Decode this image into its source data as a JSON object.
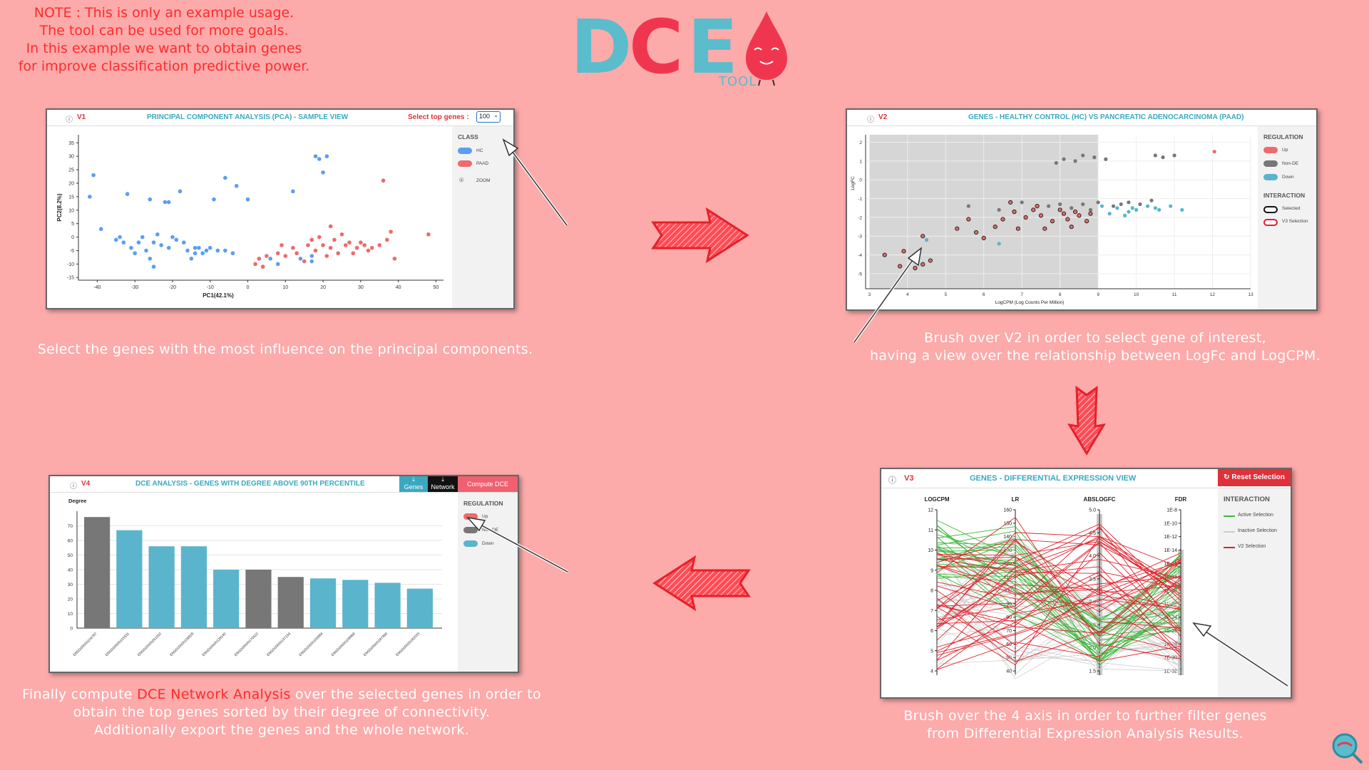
{
  "note": [
    "NOTE : This is only an example usage.",
    "The tool can be used for more goals.",
    "In this example we want to obtain genes",
    "for improve classification predictive power."
  ],
  "logo": {
    "text": "DCE",
    "sub": "TOOL",
    "colors": {
      "d": "#5bbccc",
      "c": "#f0364f",
      "e": "#5bbccc",
      "drop": "#f0364f"
    }
  },
  "colors": {
    "hc": "#5b9ef0",
    "paad": "#ef6a6a",
    "up": "#ef6a6a",
    "nonde": "#777777",
    "down": "#5ab4cc",
    "accent": "#ff2b2b",
    "teal": "#3aa8c0"
  },
  "v1": {
    "id": "V1",
    "title": "PRINCIPAL COMPONENT ANALYSIS (PCA) - SAMPLE VIEW",
    "select_label": "Select top genes :",
    "select_value": "100",
    "class_header": "CLASS",
    "legend": [
      "HC",
      "PAAD"
    ],
    "zoom": "ZOOM",
    "caption": "Select the genes with the most influence on the principal components.",
    "chart_data": {
      "type": "scatter",
      "xlabel": "PC1(42.1%)",
      "ylabel": "PC2(8.2%)",
      "xlim": [
        -45,
        52
      ],
      "ylim": [
        -16,
        38
      ],
      "xticks": [
        -40,
        -30,
        -20,
        -10,
        0,
        10,
        20,
        30,
        40,
        50
      ],
      "yticks": [
        -15,
        -10,
        -5,
        0,
        5,
        10,
        15,
        20,
        25,
        30,
        35
      ],
      "series": [
        {
          "name": "HC",
          "color": "#5b9ef0",
          "points": [
            [
              -42,
              15
            ],
            [
              -41,
              23
            ],
            [
              -39,
              3
            ],
            [
              -35,
              -1
            ],
            [
              -34,
              0
            ],
            [
              -33,
              -2
            ],
            [
              -32,
              16
            ],
            [
              -31,
              -4
            ],
            [
              -30,
              -6
            ],
            [
              -29,
              -2
            ],
            [
              -28,
              0
            ],
            [
              -27,
              -5
            ],
            [
              -26,
              14
            ],
            [
              -26,
              -8
            ],
            [
              -25,
              -11
            ],
            [
              -25,
              -2
            ],
            [
              -24,
              1
            ],
            [
              -23,
              -3
            ],
            [
              -22,
              13
            ],
            [
              -21,
              13
            ],
            [
              -21,
              -4
            ],
            [
              -20,
              0
            ],
            [
              -19,
              -1
            ],
            [
              -18,
              17
            ],
            [
              -17,
              -2
            ],
            [
              -16,
              -5
            ],
            [
              -15,
              -8
            ],
            [
              -14,
              -4
            ],
            [
              -14,
              -6
            ],
            [
              -13,
              -4
            ],
            [
              -12,
              -6
            ],
            [
              -11,
              -5
            ],
            [
              -10,
              -4
            ],
            [
              -9,
              14
            ],
            [
              -8,
              -5
            ],
            [
              -6,
              22
            ],
            [
              -6,
              -5
            ],
            [
              -4,
              -6
            ],
            [
              -3,
              19
            ],
            [
              0,
              14
            ],
            [
              6,
              -8
            ],
            [
              8,
              -10
            ],
            [
              12,
              17
            ],
            [
              14,
              -8
            ],
            [
              17,
              -7
            ],
            [
              17,
              -9
            ],
            [
              18,
              30
            ],
            [
              19,
              29
            ],
            [
              20,
              24
            ],
            [
              21,
              30
            ]
          ]
        },
        {
          "name": "PAAD",
          "color": "#ef6a6a",
          "points": [
            [
              2,
              -10
            ],
            [
              3,
              -8
            ],
            [
              4,
              -11
            ],
            [
              5,
              -7
            ],
            [
              8,
              -6
            ],
            [
              9,
              -3
            ],
            [
              10,
              -7
            ],
            [
              12,
              -4
            ],
            [
              13,
              -6
            ],
            [
              15,
              -9
            ],
            [
              16,
              -3
            ],
            [
              17,
              -1
            ],
            [
              18,
              -5
            ],
            [
              19,
              0
            ],
            [
              20,
              -3
            ],
            [
              21,
              -7
            ],
            [
              22,
              4
            ],
            [
              22,
              -4
            ],
            [
              23,
              -1
            ],
            [
              24,
              -6
            ],
            [
              25,
              1
            ],
            [
              26,
              -3
            ],
            [
              27,
              -2
            ],
            [
              28,
              -6
            ],
            [
              29,
              -4
            ],
            [
              30,
              -2
            ],
            [
              31,
              -3
            ],
            [
              32,
              -5
            ],
            [
              33,
              -4
            ],
            [
              35,
              -3
            ],
            [
              36,
              21
            ],
            [
              37,
              -1
            ],
            [
              38,
              2
            ],
            [
              39,
              -8
            ],
            [
              48,
              1
            ]
          ]
        }
      ]
    }
  },
  "v2": {
    "id": "V2",
    "title": "GENES - HEALTHY CONTROL (HC) VS PANCREATIC ADENOCARCINOMA (PAAD)",
    "regulation_header": "REGULATION",
    "legend": [
      "Up",
      "Non-DE",
      "Down"
    ],
    "interaction_header": "INTERACTION",
    "interaction": [
      "Selected",
      "V3 Selection"
    ],
    "caption": [
      "Brush over V2 in order to select gene of interest,",
      "having a view over the relationship between LogFc and LogCPM."
    ],
    "chart_data": {
      "type": "scatter",
      "xlabel": "LogCPM (Log Counts Per Million)",
      "ylabel": "LogFC",
      "xlim": [
        2.9,
        13
      ],
      "ylim": [
        -5.8,
        2.4
      ],
      "xticks": [
        3,
        4,
        5,
        6,
        7,
        8,
        9,
        10,
        11,
        12,
        13
      ],
      "yticks": [
        2,
        1,
        0,
        -1,
        -2,
        -3,
        -4,
        -5
      ],
      "brush": [
        3,
        9
      ],
      "series": [
        {
          "name": "Up",
          "color": "#ef6a6a",
          "points": [
            [
              12.05,
              1.5
            ]
          ]
        },
        {
          "name": "Non-DE",
          "color": "#777777",
          "points": [
            [
              7.9,
              0.9
            ],
            [
              8.1,
              1.1
            ],
            [
              8.4,
              1.0
            ],
            [
              8.6,
              1.3
            ],
            [
              8.9,
              1.2
            ],
            [
              9.2,
              1.1
            ],
            [
              10.5,
              1.3
            ],
            [
              10.7,
              1.2
            ],
            [
              11.0,
              1.3
            ],
            [
              5.6,
              -1.4
            ],
            [
              6.4,
              -1.6
            ],
            [
              7.0,
              -1.2
            ],
            [
              7.7,
              -1.4
            ],
            [
              8.0,
              -1.3
            ],
            [
              8.3,
              -1.5
            ],
            [
              8.6,
              -1.3
            ],
            [
              8.8,
              -1.6
            ],
            [
              9.0,
              -1.2
            ],
            [
              9.4,
              -1.4
            ],
            [
              9.6,
              -1.3
            ],
            [
              9.8,
              -1.2
            ],
            [
              10.1,
              -1.3
            ],
            [
              10.4,
              -1.1
            ]
          ]
        },
        {
          "name": "Down",
          "color": "#5ab4cc",
          "points": [
            [
              9.1,
              -1.4
            ],
            [
              9.3,
              -1.8
            ],
            [
              9.5,
              -1.5
            ],
            [
              9.7,
              -1.9
            ],
            [
              9.9,
              -1.5
            ],
            [
              10.0,
              -1.6
            ],
            [
              10.3,
              -1.4
            ],
            [
              10.6,
              -1.6
            ],
            [
              10.9,
              -1.4
            ],
            [
              11.2,
              -1.6
            ],
            [
              10.5,
              -1.5
            ],
            [
              9.8,
              -1.7
            ],
            [
              4.5,
              -3.2
            ],
            [
              6.4,
              -3.4
            ]
          ]
        },
        {
          "name": "Selected",
          "color": "#ef6a6a",
          "points": [
            [
              3.4,
              -4.0
            ],
            [
              3.9,
              -3.8
            ],
            [
              3.8,
              -4.6
            ],
            [
              4.2,
              -4.7
            ],
            [
              4.4,
              -4.5
            ],
            [
              4.6,
              -4.3
            ],
            [
              4.4,
              -3.0
            ],
            [
              5.3,
              -2.6
            ],
            [
              5.6,
              -2.1
            ],
            [
              5.8,
              -2.8
            ],
            [
              6.0,
              -3.1
            ],
            [
              6.3,
              -2.5
            ],
            [
              6.5,
              -2.1
            ],
            [
              6.8,
              -1.7
            ],
            [
              6.9,
              -2.6
            ],
            [
              7.1,
              -2.0
            ],
            [
              7.3,
              -1.6
            ],
            [
              7.5,
              -1.9
            ],
            [
              7.6,
              -2.6
            ],
            [
              7.8,
              -2.2
            ],
            [
              8.0,
              -1.6
            ],
            [
              8.1,
              -1.8
            ],
            [
              8.2,
              -2.1
            ],
            [
              8.3,
              -2.5
            ],
            [
              8.4,
              -1.7
            ],
            [
              8.5,
              -1.9
            ],
            [
              8.7,
              -2.2
            ],
            [
              8.8,
              -1.8
            ],
            [
              7.4,
              -1.4
            ],
            [
              6.7,
              -1.2
            ]
          ]
        }
      ]
    }
  },
  "v3": {
    "id": "V3",
    "title": "GENES - DIFFERENTIAL EXPRESSION VIEW",
    "reset_label": "Reset Selection",
    "interaction_header": "INTERACTION",
    "legend": [
      "Active Selection",
      "Inactive Selection",
      "V2 Selection"
    ],
    "axes": [
      {
        "name": "LOGCPM",
        "ticks": [
          "12",
          "11",
          "10",
          "9",
          "8",
          "7",
          "6",
          "5",
          "4"
        ]
      },
      {
        "name": "LR",
        "ticks": [
          "160",
          "150",
          "140",
          "130",
          "120",
          "110",
          "100",
          "90",
          "80",
          "70",
          "60",
          "50",
          "40"
        ]
      },
      {
        "name": "ABSLOGFC",
        "ticks": [
          "5.0",
          "4.5",
          "4.0",
          "3.5",
          "3.0",
          "2.5",
          "2.0",
          "1.5"
        ]
      },
      {
        "name": "FDR",
        "ticks": [
          "1E-8",
          "1E-10",
          "1E-12",
          "1E-14",
          "1E-16",
          "1E-18",
          "1E-20",
          "1E-22",
          "1E-24",
          "1E-26",
          "1E-28",
          "1E-30",
          "1E-32"
        ]
      }
    ],
    "caption": [
      "Brush over the 4 axis in order to further filter genes",
      "from Differential Expression Analysis Results."
    ]
  },
  "v4": {
    "id": "V4",
    "title": "DCE ANALYSIS - GENES WITH DEGREE ABOVE 90TH PERCENTILE",
    "genes_btn": "Genes",
    "network_btn": "Network",
    "compute_btn": "Compute DCE",
    "regulation_header": "REGULATION",
    "legend": [
      "Up",
      "Non-DE",
      "Down"
    ],
    "caption": {
      "pre": "Finally compute ",
      "hl": "DCE Network Analysis",
      "post": " over the selected genes in order to",
      "line2": "obtain the top genes sorted by their degree of connectivity.",
      "line3": "Additionally export the genes and the whole network."
    },
    "chart_data": {
      "type": "bar",
      "ylabel": "Degree",
      "ylim": [
        0,
        80
      ],
      "yticks": [
        0,
        10,
        20,
        30,
        40,
        50,
        60,
        70
      ],
      "categories": [
        "ENSG00000104787",
        "ENSG00000102431",
        "ENSG00000251002",
        "ENSG00000106828",
        "ENSG00000128140",
        "ENSG00000170510",
        "ENSG00000137154",
        "ENSG00000105884",
        "ENSG00000108868",
        "ENSG00000187399",
        "ENSG00000182033"
      ],
      "values": [
        76,
        67,
        56,
        56,
        40,
        40,
        35,
        34,
        33,
        31,
        27
      ],
      "regulation": [
        "Non-DE",
        "Down",
        "Down",
        "Down",
        "Down",
        "Non-DE",
        "Non-DE",
        "Down",
        "Down",
        "Down",
        "Down"
      ]
    }
  }
}
